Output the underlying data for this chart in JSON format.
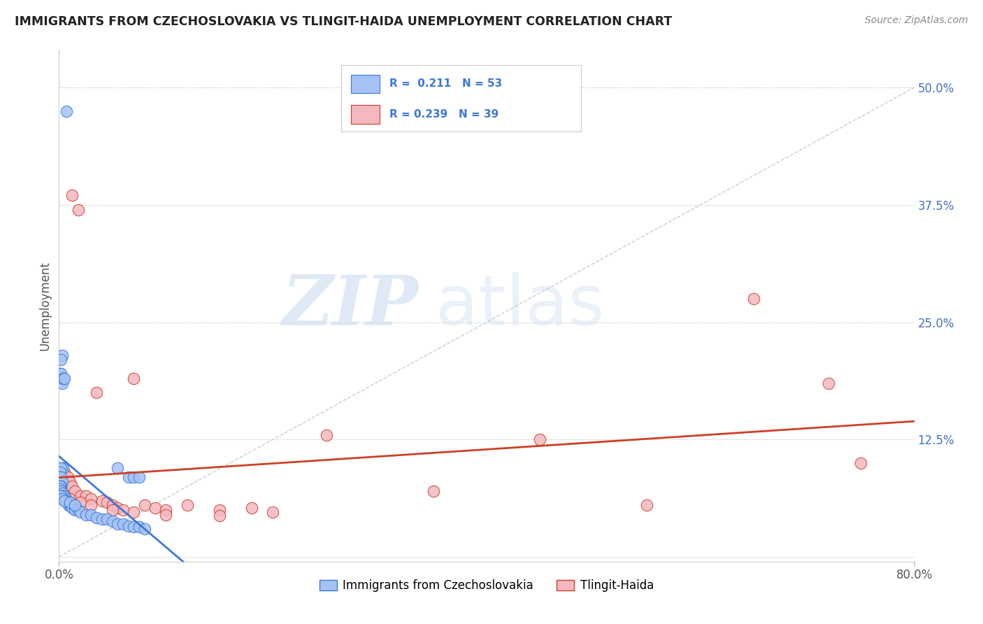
{
  "title": "IMMIGRANTS FROM CZECHOSLOVAKIA VS TLINGIT-HAIDA UNEMPLOYMENT CORRELATION CHART",
  "source": "Source: ZipAtlas.com",
  "ylabel": "Unemployment",
  "xlim": [
    0.0,
    0.8
  ],
  "ylim": [
    -0.005,
    0.54
  ],
  "r1": 0.211,
  "n1": 53,
  "r2": 0.239,
  "n2": 39,
  "color1": "#a4c2f4",
  "color2": "#f4b8c1",
  "trendline1_color": "#3c78d8",
  "trendline2_color": "#cc4125",
  "watermark_zip": "ZIP",
  "watermark_atlas": "atlas",
  "legend_label1": "Immigrants from Czechoslovakia",
  "legend_label2": "Tlingit-Haida",
  "blue_x": [
    0.007,
    0.003,
    0.002,
    0.001,
    0.002,
    0.003,
    0.004,
    0.005,
    0.003,
    0.004,
    0.002,
    0.001,
    0.001,
    0.002,
    0.003,
    0.002,
    0.001,
    0.001,
    0.002,
    0.003,
    0.004,
    0.005,
    0.006,
    0.007,
    0.008,
    0.009,
    0.01,
    0.012,
    0.015,
    0.018,
    0.02,
    0.025,
    0.03,
    0.035,
    0.04,
    0.045,
    0.05,
    0.055,
    0.06,
    0.065,
    0.07,
    0.075,
    0.08,
    0.055,
    0.065,
    0.07,
    0.075,
    0.001,
    0.002,
    0.003,
    0.005,
    0.01,
    0.015
  ],
  "blue_y": [
    0.475,
    0.215,
    0.21,
    0.195,
    0.195,
    0.185,
    0.19,
    0.19,
    0.095,
    0.095,
    0.095,
    0.09,
    0.085,
    0.085,
    0.08,
    0.075,
    0.075,
    0.072,
    0.07,
    0.068,
    0.065,
    0.065,
    0.062,
    0.06,
    0.058,
    0.055,
    0.055,
    0.052,
    0.05,
    0.05,
    0.048,
    0.045,
    0.045,
    0.042,
    0.04,
    0.04,
    0.038,
    0.035,
    0.035,
    0.033,
    0.032,
    0.032,
    0.03,
    0.095,
    0.085,
    0.085,
    0.085,
    0.065,
    0.065,
    0.062,
    0.06,
    0.058,
    0.055
  ],
  "pink_x": [
    0.012,
    0.018,
    0.005,
    0.008,
    0.01,
    0.012,
    0.015,
    0.02,
    0.025,
    0.03,
    0.035,
    0.04,
    0.045,
    0.05,
    0.055,
    0.06,
    0.07,
    0.08,
    0.09,
    0.1,
    0.12,
    0.15,
    0.18,
    0.2,
    0.25,
    0.35,
    0.45,
    0.55,
    0.65,
    0.72,
    0.75,
    0.005,
    0.01,
    0.02,
    0.03,
    0.05,
    0.07,
    0.1,
    0.15
  ],
  "pink_y": [
    0.385,
    0.37,
    0.09,
    0.085,
    0.08,
    0.075,
    0.07,
    0.065,
    0.065,
    0.062,
    0.175,
    0.06,
    0.058,
    0.055,
    0.052,
    0.05,
    0.19,
    0.055,
    0.052,
    0.05,
    0.055,
    0.05,
    0.052,
    0.048,
    0.13,
    0.07,
    0.125,
    0.055,
    0.275,
    0.185,
    0.1,
    0.065,
    0.062,
    0.058,
    0.055,
    0.05,
    0.048,
    0.045,
    0.044
  ]
}
